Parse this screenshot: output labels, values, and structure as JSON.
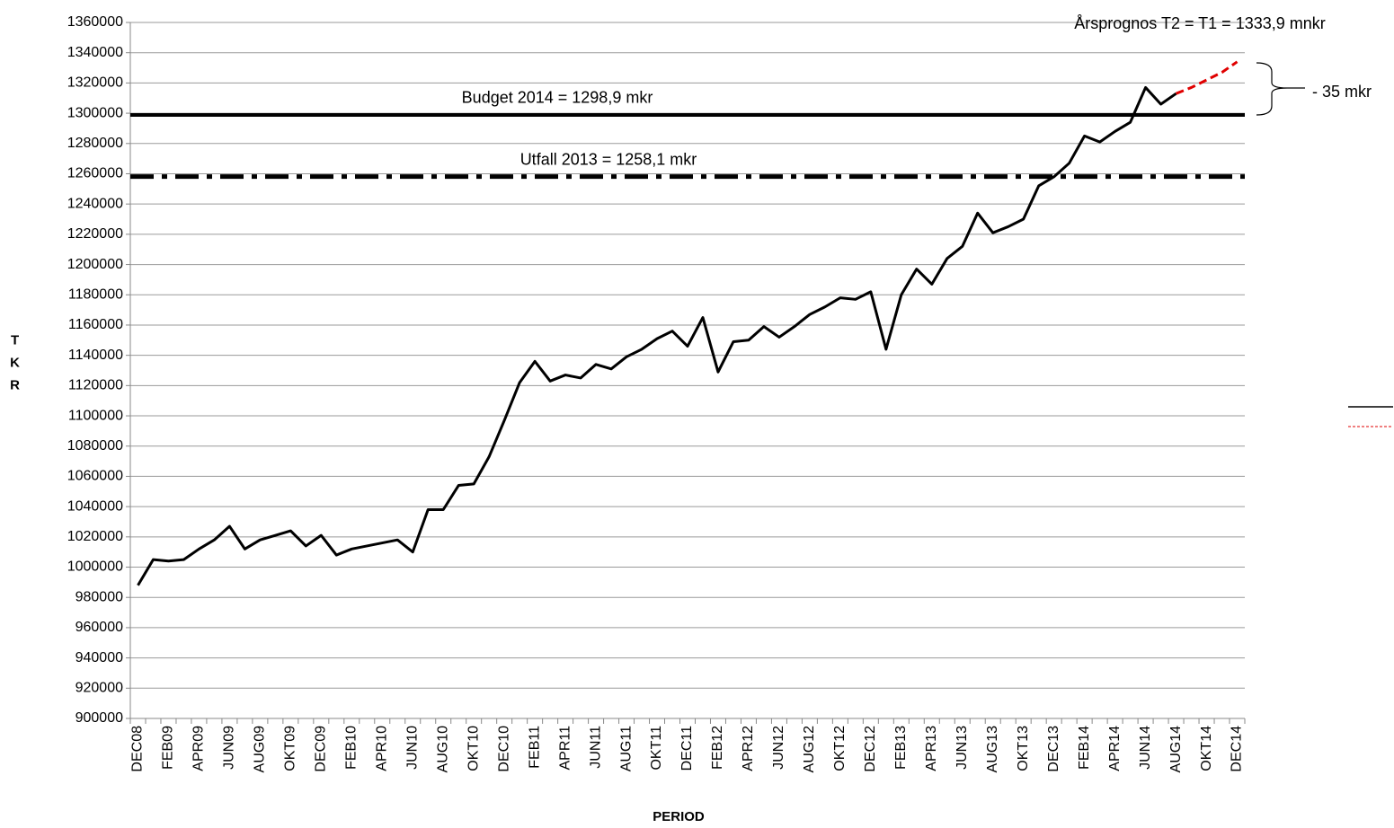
{
  "chart_data": {
    "type": "line",
    "y_label": "TKR",
    "x_label": "PERIOD",
    "categories": [
      "DEC08",
      null,
      "FEB09",
      null,
      "APR09",
      null,
      "JUN09",
      null,
      "AUG09",
      null,
      "OKT09",
      null,
      "DEC09",
      null,
      "FEB10",
      null,
      "APR10",
      null,
      "JUN10",
      null,
      "AUG10",
      null,
      "OKT10",
      null,
      "DEC10",
      null,
      "FEB11",
      null,
      "APR11",
      null,
      "JUN11",
      null,
      "AUG11",
      null,
      "OKT11",
      null,
      "DEC11",
      null,
      "FEB12",
      null,
      "APR12",
      null,
      "JUN12",
      null,
      "AUG12",
      null,
      "OKT12",
      null,
      "DEC12",
      null,
      "FEB13",
      null,
      "APR13",
      null,
      "JUN13",
      null,
      "AUG13",
      null,
      "OKT13",
      null,
      "DEC13",
      null,
      "FEB14",
      null,
      "APR14",
      null,
      "JUN14",
      null,
      "AUG14",
      null,
      "OKT14",
      null,
      "DEC14"
    ],
    "series": [
      {
        "color": "#000000",
        "dash": "solid",
        "values": [
          988000,
          1005000,
          1004000,
          1005000,
          1012000,
          1018000,
          1027000,
          1012000,
          1018000,
          1021000,
          1024000,
          1014000,
          1021000,
          1008000,
          1012000,
          1014000,
          1016000,
          1018000,
          1010000,
          1038000,
          1038000,
          1054000,
          1055000,
          1073000,
          1097000,
          1122000,
          1136000,
          1123000,
          1127000,
          1125000,
          1134000,
          1131000,
          1139000,
          1144000,
          1151000,
          1156000,
          1146000,
          1165000,
          1129000,
          1149000,
          1150000,
          1159000,
          1152000,
          1159000,
          1167000,
          1172000,
          1178000,
          1177000,
          1182000,
          1144000,
          1180000,
          1197000,
          1187000,
          1204000,
          1212000,
          1234000,
          1221000,
          1225000,
          1230000,
          1252000,
          1258000,
          1267000,
          1285000,
          1281000,
          1288000,
          1294000,
          1317000,
          1306000,
          1313000,
          null,
          null,
          null,
          null
        ]
      },
      {
        "color": "#e00000",
        "dash": "dashed",
        "values": [
          null,
          null,
          null,
          null,
          null,
          null,
          null,
          null,
          null,
          null,
          null,
          null,
          null,
          null,
          null,
          null,
          null,
          null,
          null,
          null,
          null,
          null,
          null,
          null,
          null,
          null,
          null,
          null,
          null,
          null,
          null,
          null,
          null,
          null,
          null,
          null,
          null,
          null,
          null,
          null,
          null,
          null,
          null,
          null,
          null,
          null,
          null,
          null,
          null,
          null,
          null,
          null,
          null,
          null,
          null,
          null,
          null,
          null,
          null,
          null,
          null,
          null,
          null,
          null,
          null,
          null,
          null,
          null,
          1313000,
          1317000,
          1322000,
          1327000,
          1334000
        ]
      }
    ],
    "reference_lines": [
      {
        "value": 1298900,
        "label": "Budget 2014 = 1298,9  mkr",
        "style": "solid"
      },
      {
        "value": 1258100,
        "label": "Utfall 2013 = 1258,1  mkr",
        "style": "dashdot"
      }
    ],
    "annotations": [
      "Årsprognos  T2 = T1 = 1333,9  mnkr",
      "- 35 mkr"
    ],
    "ylim": [
      900000,
      1360000
    ],
    "yticks": [
      900000,
      920000,
      940000,
      960000,
      980000,
      1000000,
      1020000,
      1040000,
      1060000,
      1080000,
      1100000,
      1120000,
      1140000,
      1160000,
      1180000,
      1200000,
      1220000,
      1240000,
      1260000,
      1280000,
      1300000,
      1320000,
      1340000,
      1360000
    ],
    "grid": true
  }
}
